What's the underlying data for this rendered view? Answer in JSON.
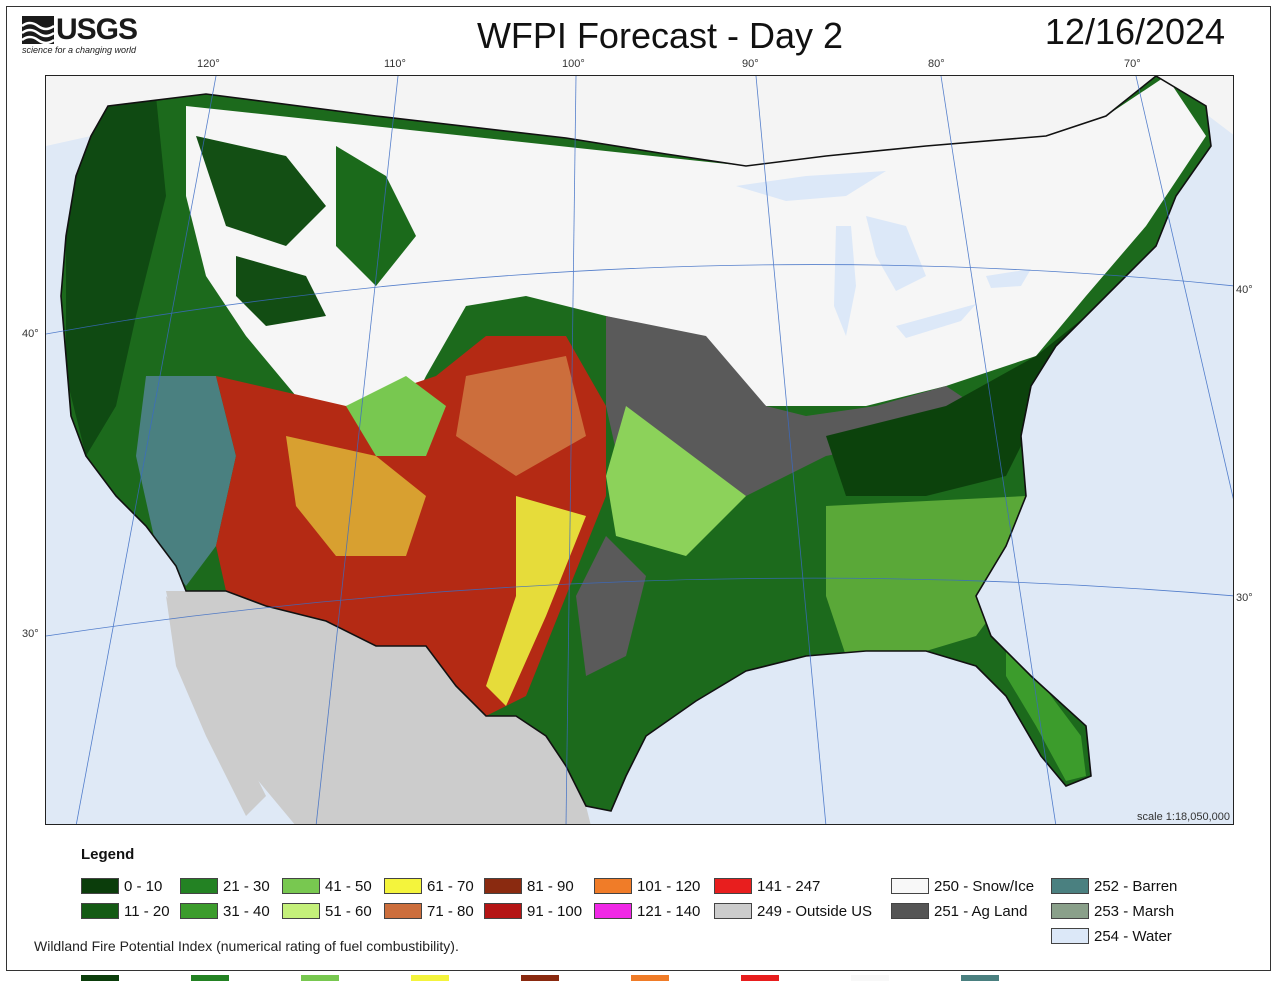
{
  "header": {
    "logo_text": "USGS",
    "logo_tagline": "science for a changing world",
    "title": "WFPI Forecast - Day 2",
    "date": "12/16/2024"
  },
  "graticule": {
    "longitudes": [
      "120°",
      "110°",
      "100°",
      "90°",
      "80°",
      "70°"
    ],
    "latitudes_left": [
      "40°",
      "30°"
    ],
    "latitudes_right": [
      "40°",
      "30°"
    ]
  },
  "map": {
    "scale": "scale 1:18,050,000"
  },
  "legend": {
    "title": "Legend",
    "items": [
      {
        "label": "0 - 10",
        "color": "#0b3d0b"
      },
      {
        "label": "11 - 20",
        "color": "#145a14"
      },
      {
        "label": "21 - 30",
        "color": "#238223"
      },
      {
        "label": "31 - 40",
        "color": "#3c9c2c"
      },
      {
        "label": "41 - 50",
        "color": "#78c850"
      },
      {
        "label": "51 - 60",
        "color": "#c4f07a"
      },
      {
        "label": "61 - 70",
        "color": "#f4f43c"
      },
      {
        "label": "71 - 80",
        "color": "#cc6e3c"
      },
      {
        "label": "81 - 90",
        "color": "#8a2a10"
      },
      {
        "label": "91 - 100",
        "color": "#b41414"
      },
      {
        "label": "101 - 120",
        "color": "#f07c28"
      },
      {
        "label": "121 - 140",
        "color": "#f028e6"
      },
      {
        "label": "141 - 247",
        "color": "#e81e1e"
      },
      {
        "label": "249 - Outside US",
        "color": "#cccccc"
      },
      {
        "label": "250 - Snow/Ice",
        "color": "#f8f8f8"
      },
      {
        "label": "251 - Ag Land",
        "color": "#555555"
      },
      {
        "label": "252 - Barren",
        "color": "#4a8080"
      },
      {
        "label": "253 - Marsh",
        "color": "#8aa08a"
      },
      {
        "label": "254 - Water",
        "color": "#dce8f8"
      }
    ],
    "footnote": "Wildland Fire Potential Index (numerical rating of fuel combustibility)."
  }
}
